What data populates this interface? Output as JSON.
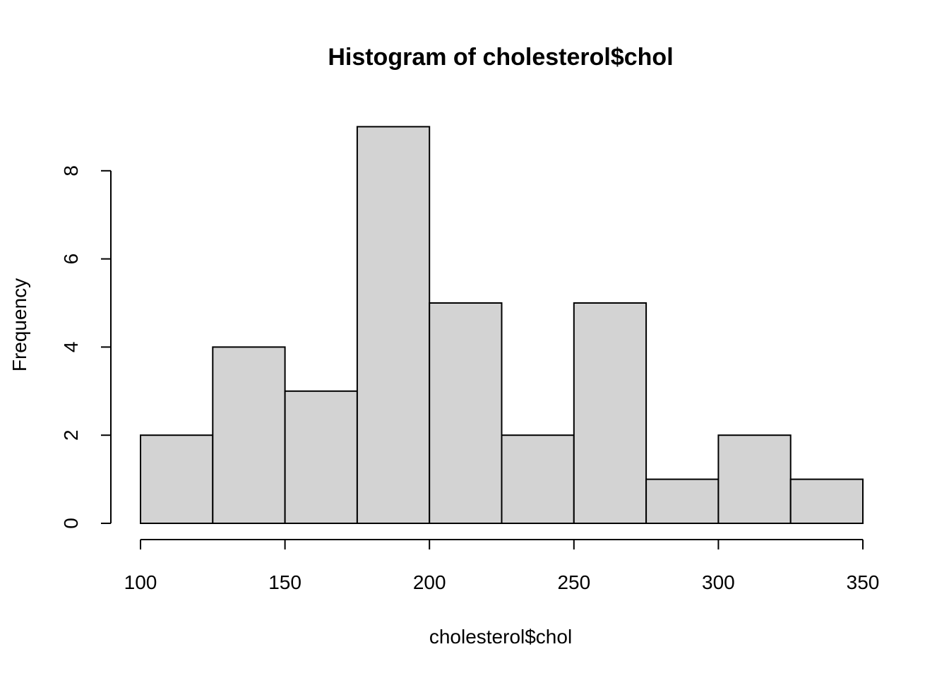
{
  "chart_data": {
    "type": "bar",
    "subtype": "histogram",
    "title": "Histogram of cholesterol$chol",
    "xlabel": "cholesterol$chol",
    "ylabel": "Frequency",
    "bins": [
      {
        "from": 100,
        "to": 125,
        "count": 2
      },
      {
        "from": 125,
        "to": 150,
        "count": 4
      },
      {
        "from": 150,
        "to": 175,
        "count": 3
      },
      {
        "from": 175,
        "to": 200,
        "count": 9
      },
      {
        "from": 200,
        "to": 225,
        "count": 5
      },
      {
        "from": 225,
        "to": 250,
        "count": 2
      },
      {
        "from": 250,
        "to": 275,
        "count": 5
      },
      {
        "from": 275,
        "to": 300,
        "count": 1
      },
      {
        "from": 300,
        "to": 325,
        "count": 2
      },
      {
        "from": 325,
        "to": 350,
        "count": 1
      }
    ],
    "x_ticks": [
      100,
      150,
      200,
      250,
      300,
      350
    ],
    "y_ticks": [
      0,
      2,
      4,
      6,
      8
    ],
    "xlim": [
      100,
      350
    ],
    "ylim": [
      0,
      9
    ],
    "grid": false,
    "legend": "none",
    "bar_color": "#d3d3d3",
    "border_color": "#000000"
  }
}
